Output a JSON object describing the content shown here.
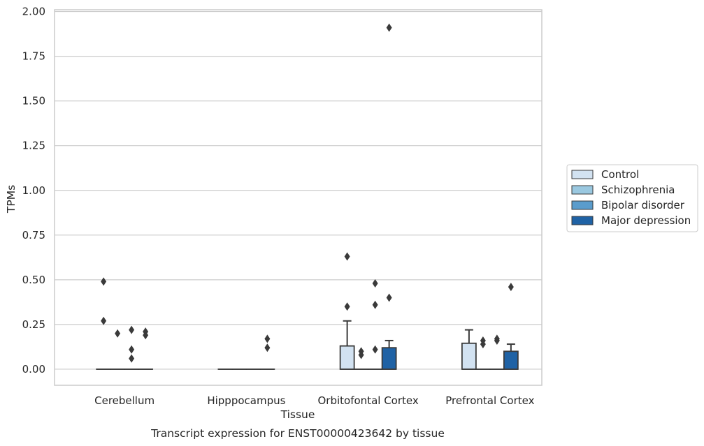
{
  "chart_data": {
    "type": "boxplot",
    "title": "Transcript expression for ENST00000423642 by tissue",
    "xlabel": "Tissue",
    "ylabel": "TPMs",
    "ylim": [
      -0.09,
      2.01
    ],
    "yticks": [
      "0.00",
      "0.25",
      "0.50",
      "0.75",
      "1.00",
      "1.25",
      "1.50",
      "1.75",
      "2.00"
    ],
    "ytick_values": [
      0,
      0.25,
      0.5,
      0.75,
      1.0,
      1.25,
      1.5,
      1.75,
      2.0
    ],
    "grid": "horizontal",
    "legend_position": "right",
    "categories": [
      "Cerebellum",
      "Hipppocampus",
      "Orbitofontal Cortex",
      "Prefrontal Cortex"
    ],
    "series": [
      {
        "name": "Control",
        "color": "#d2e2f1",
        "boxes": [
          {
            "q1": 0,
            "median": 0,
            "q3": 0,
            "whislo": 0,
            "whishi": 0,
            "fliers": [
              0.49,
              0.27
            ]
          },
          {
            "q1": 0,
            "median": 0,
            "q3": 0,
            "whislo": 0,
            "whishi": 0,
            "fliers": []
          },
          {
            "q1": 0,
            "median": 0,
            "q3": 0.13,
            "whislo": 0,
            "whishi": 0.27,
            "fliers": [
              0.63,
              0.35
            ]
          },
          {
            "q1": 0,
            "median": 0,
            "q3": 0.145,
            "whislo": 0,
            "whishi": 0.22,
            "fliers": []
          }
        ]
      },
      {
        "name": "Schizophrenia",
        "color": "#9ac8e0",
        "boxes": [
          {
            "q1": 0,
            "median": 0,
            "q3": 0,
            "whislo": 0,
            "whishi": 0,
            "fliers": [
              0.2
            ]
          },
          {
            "q1": 0,
            "median": 0,
            "q3": 0,
            "whislo": 0,
            "whishi": 0,
            "fliers": []
          },
          {
            "q1": 0,
            "median": 0,
            "q3": 0,
            "whislo": 0,
            "whishi": 0,
            "fliers": [
              0.1,
              0.08
            ]
          },
          {
            "q1": 0,
            "median": 0,
            "q3": 0,
            "whislo": 0,
            "whishi": 0,
            "fliers": [
              0.16,
              0.14
            ]
          }
        ]
      },
      {
        "name": "Bipolar disorder",
        "color": "#5a9ccc",
        "boxes": [
          {
            "q1": 0,
            "median": 0,
            "q3": 0,
            "whislo": 0,
            "whishi": 0,
            "fliers": [
              0.22,
              0.11,
              0.06
            ]
          },
          {
            "q1": 0,
            "median": 0,
            "q3": 0,
            "whislo": 0,
            "whishi": 0,
            "fliers": []
          },
          {
            "q1": 0,
            "median": 0,
            "q3": 0,
            "whislo": 0,
            "whishi": 0,
            "fliers": [
              0.48,
              0.36,
              0.11
            ]
          },
          {
            "q1": 0,
            "median": 0,
            "q3": 0,
            "whislo": 0,
            "whishi": 0,
            "fliers": [
              0.17,
              0.16
            ]
          }
        ]
      },
      {
        "name": "Major depression",
        "color": "#1f62a5",
        "boxes": [
          {
            "q1": 0,
            "median": 0,
            "q3": 0,
            "whislo": 0,
            "whishi": 0,
            "fliers": [
              0.21,
              0.19
            ]
          },
          {
            "q1": 0,
            "median": 0,
            "q3": 0,
            "whislo": 0,
            "whishi": 0,
            "fliers": [
              0.17,
              0.12
            ]
          },
          {
            "q1": 0,
            "median": 0,
            "q3": 0.12,
            "whislo": 0,
            "whishi": 0.16,
            "fliers": [
              1.91,
              0.4
            ]
          },
          {
            "q1": 0,
            "median": 0,
            "q3": 0.1,
            "whislo": 0,
            "whishi": 0.14,
            "fliers": [
              0.46
            ]
          }
        ]
      }
    ]
  },
  "colors": {
    "grid": "#cccccc",
    "box_edge": "#3a3a3a",
    "flier": "#3a3a3a"
  }
}
